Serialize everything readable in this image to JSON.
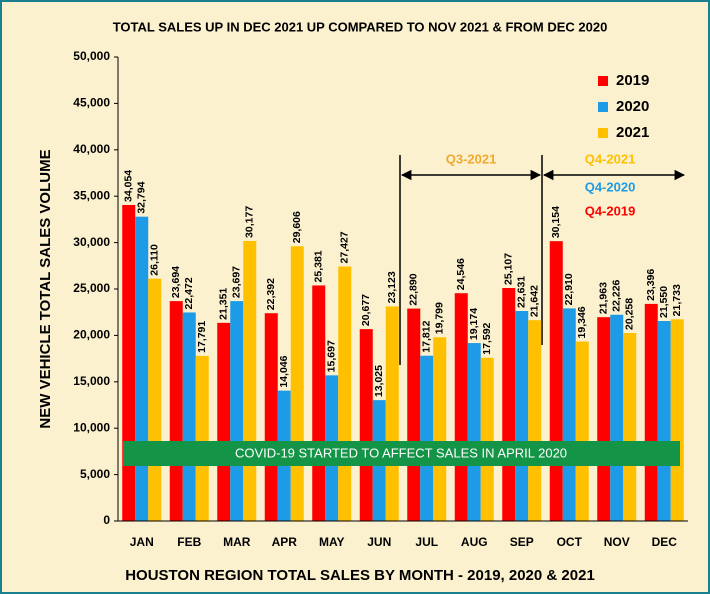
{
  "chart_data": {
    "type": "bar",
    "title": "TOTAL SALES UP IN DEC 2021 UP COMPARED TO NOV 2021 & FROM DEC 2020",
    "x_label": "HOUSTON REGION TOTAL SALES BY MONTH - 2019, 2020 & 2021",
    "y_label": "NEW VEHICLE TOTAL SALES VOLUME",
    "categories": [
      "JAN",
      "FEB",
      "MAR",
      "APR",
      "MAY",
      "JUN",
      "JUL",
      "AUG",
      "SEP",
      "OCT",
      "NOV",
      "DEC"
    ],
    "series": [
      {
        "name": "2019",
        "color": "#ff0000",
        "values": [
          34054,
          23694,
          21351,
          22392,
          25381,
          20677,
          22890,
          24546,
          25107,
          30154,
          21963,
          23396
        ],
        "value_labels": [
          "34,054",
          "23,694",
          "21,351",
          "22,392",
          "25,381",
          "20,677",
          "22,890",
          "24,546",
          "25,107",
          "30,154",
          "21,963",
          "23,396"
        ]
      },
      {
        "name": "2020",
        "color": "#1e9be6",
        "values": [
          32794,
          22472,
          23697,
          14046,
          15697,
          13025,
          17812,
          19174,
          22631,
          22910,
          22226,
          21550
        ],
        "value_labels": [
          "32,794",
          "22,472",
          "23,697",
          "14,046",
          "15,697",
          "13,025",
          "17,812",
          "19,174",
          "22,631",
          "22,910",
          "22,226",
          "21,550"
        ]
      },
      {
        "name": "2021",
        "color": "#ffc000",
        "values": [
          26110,
          17791,
          30177,
          29606,
          27427,
          23123,
          19799,
          17592,
          21642,
          19346,
          20258,
          21733
        ],
        "value_labels": [
          "26,110",
          "17,791",
          "30,177",
          "29,606",
          "27,427",
          "23,123",
          "19,799",
          "17,592",
          "21,642",
          "19,346",
          "20,258",
          "21,733"
        ]
      }
    ],
    "ylim": [
      0,
      50000
    ],
    "yticks": [
      0,
      {
        "value": 5000,
        "label": "5,000"
      },
      {
        "value": 10000,
        "label": "10,000"
      },
      {
        "value": 15000,
        "label": "15,000"
      },
      {
        "value": 20000,
        "label": "20,000"
      },
      {
        "value": 25000,
        "label": "25,000"
      },
      {
        "value": 30000,
        "label": "30,000"
      },
      {
        "value": 35000,
        "label": "35,000"
      },
      {
        "value": 40000,
        "label": "40,000"
      },
      {
        "value": 45000,
        "label": "45,000"
      },
      {
        "value": 50000,
        "label": "50,000"
      }
    ],
    "legend": "upper right",
    "annotations": [
      "Q3-2021",
      "Q4-2021",
      "Q4-2020",
      "Q4-2019",
      "COVID-19 STARTED TO AFFECT SALES IN APRIL 2020"
    ]
  }
}
